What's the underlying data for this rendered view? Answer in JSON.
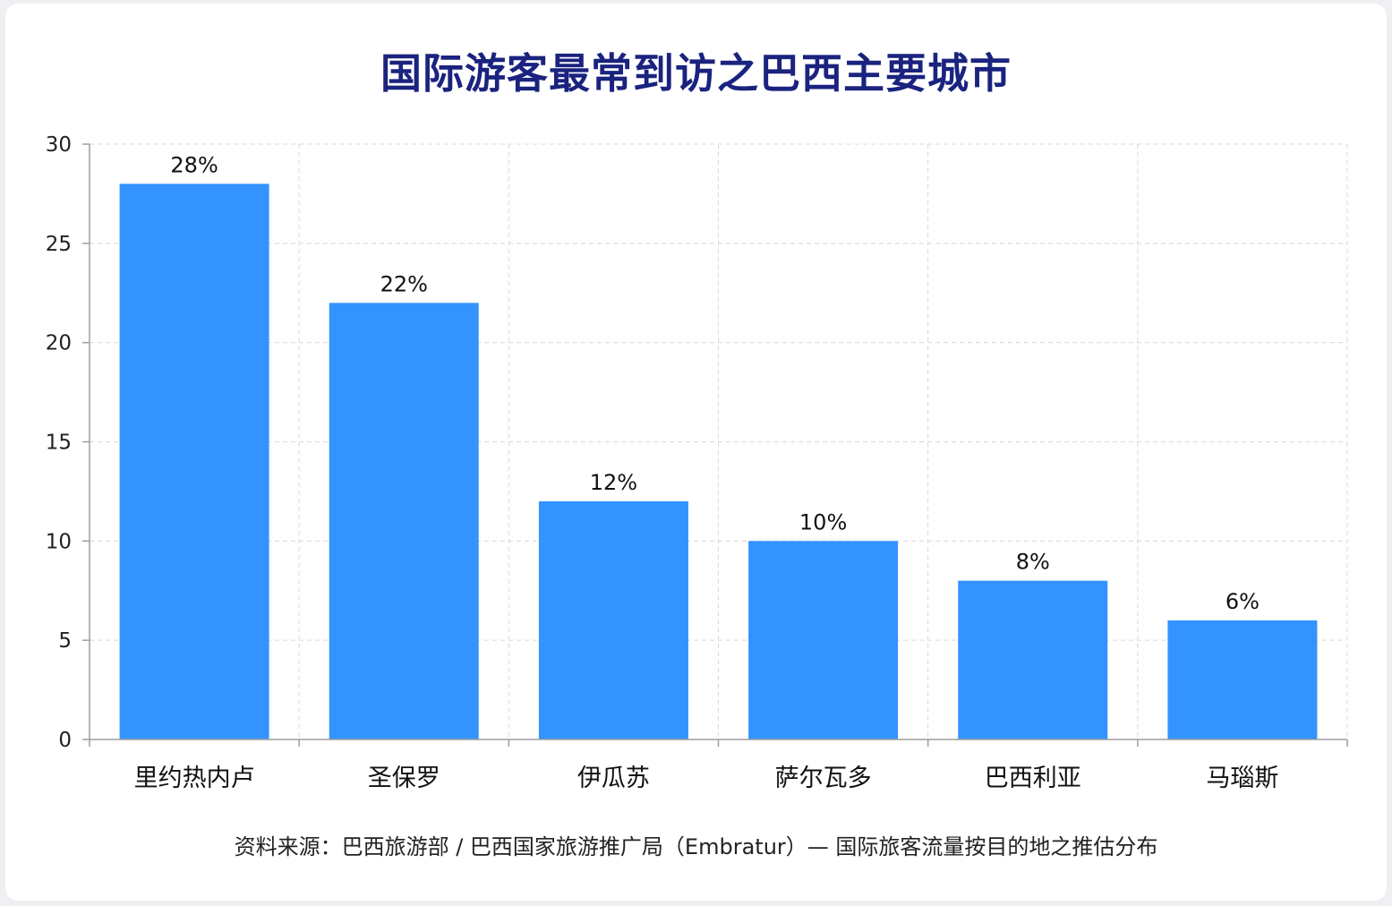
{
  "title": "国际游客最常到访之巴西主要城市",
  "source": "资料来源：巴西旅游部 / 巴西国家旅游推广局（Embratur）— 国际旅客流量按目的地之推估分布",
  "colors": {
    "bar": "#3393ff",
    "title": "#1a237e",
    "grid": "#d8d8d8",
    "axis": "#9e9e9e"
  },
  "chart_data": {
    "type": "bar",
    "title": "国际游客最常到访之巴西主要城市",
    "categories": [
      "里约热内卢",
      "圣保罗",
      "伊瓜苏",
      "萨尔瓦多",
      "巴西利亚",
      "马瑙斯"
    ],
    "values": [
      28,
      22,
      12,
      10,
      8,
      6
    ],
    "data_labels": [
      "28%",
      "22%",
      "12%",
      "10%",
      "8%",
      "6%"
    ],
    "ylim": [
      0,
      30
    ],
    "yticks": [
      0,
      5,
      10,
      15,
      20,
      25,
      30
    ],
    "xlabel": "",
    "ylabel": "",
    "grid": true,
    "legend": false
  }
}
